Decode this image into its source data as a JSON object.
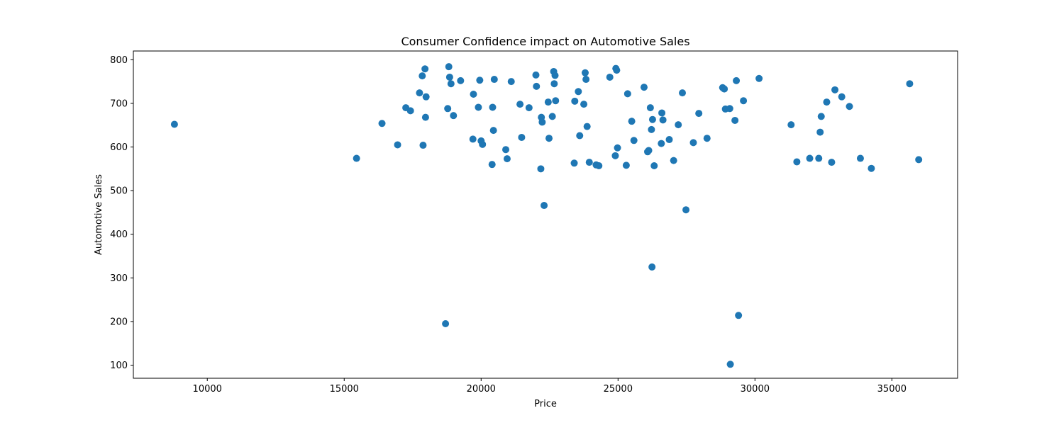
{
  "chart_data": {
    "type": "scatter",
    "title": "Consumer Confidence impact on Automotive Sales",
    "xlabel": "Price",
    "ylabel": "Automotive Sales",
    "xlim": [
      7300,
      37400
    ],
    "ylim": [
      70,
      820
    ],
    "x_ticks": [
      10000,
      15000,
      20000,
      25000,
      30000,
      35000
    ],
    "y_ticks": [
      100,
      200,
      300,
      400,
      500,
      600,
      700,
      800
    ],
    "grid": false,
    "legend": "none",
    "color": "#1f77b4",
    "points": [
      [
        8800,
        652
      ],
      [
        15450,
        574
      ],
      [
        16380,
        654
      ],
      [
        16950,
        605
      ],
      [
        17250,
        690
      ],
      [
        17420,
        683
      ],
      [
        17750,
        724
      ],
      [
        17850,
        763
      ],
      [
        17880,
        604
      ],
      [
        17950,
        779
      ],
      [
        17970,
        668
      ],
      [
        17990,
        715
      ],
      [
        18700,
        195
      ],
      [
        18780,
        688
      ],
      [
        18820,
        784
      ],
      [
        18850,
        760
      ],
      [
        18900,
        745
      ],
      [
        18990,
        672
      ],
      [
        19250,
        752
      ],
      [
        19700,
        618
      ],
      [
        19720,
        721
      ],
      [
        19900,
        691
      ],
      [
        19950,
        753
      ],
      [
        20000,
        614
      ],
      [
        20050,
        606
      ],
      [
        20400,
        560
      ],
      [
        20420,
        691
      ],
      [
        20450,
        638
      ],
      [
        20480,
        755
      ],
      [
        20900,
        594
      ],
      [
        20950,
        573
      ],
      [
        21100,
        750
      ],
      [
        21420,
        698
      ],
      [
        21480,
        622
      ],
      [
        21750,
        690
      ],
      [
        22000,
        765
      ],
      [
        22020,
        739
      ],
      [
        22180,
        550
      ],
      [
        22200,
        668
      ],
      [
        22230,
        657
      ],
      [
        22300,
        466
      ],
      [
        22450,
        703
      ],
      [
        22480,
        620
      ],
      [
        22600,
        670
      ],
      [
        22650,
        773
      ],
      [
        22670,
        745
      ],
      [
        22700,
        764
      ],
      [
        22720,
        706
      ],
      [
        23400,
        563
      ],
      [
        23420,
        705
      ],
      [
        23550,
        727
      ],
      [
        23600,
        626
      ],
      [
        23750,
        698
      ],
      [
        23800,
        770
      ],
      [
        23830,
        755
      ],
      [
        23870,
        647
      ],
      [
        23950,
        565
      ],
      [
        24200,
        559
      ],
      [
        24300,
        557
      ],
      [
        24700,
        760
      ],
      [
        24900,
        580
      ],
      [
        24920,
        780
      ],
      [
        24950,
        776
      ],
      [
        24980,
        598
      ],
      [
        25300,
        558
      ],
      [
        25350,
        722
      ],
      [
        25500,
        659
      ],
      [
        25580,
        615
      ],
      [
        25950,
        737
      ],
      [
        26080,
        589
      ],
      [
        26120,
        592
      ],
      [
        26180,
        690
      ],
      [
        26220,
        640
      ],
      [
        26240,
        325
      ],
      [
        26260,
        663
      ],
      [
        26320,
        557
      ],
      [
        26580,
        608
      ],
      [
        26600,
        678
      ],
      [
        26640,
        662
      ],
      [
        26870,
        617
      ],
      [
        27030,
        569
      ],
      [
        27200,
        651
      ],
      [
        27350,
        724
      ],
      [
        27480,
        456
      ],
      [
        27750,
        610
      ],
      [
        27950,
        677
      ],
      [
        28250,
        620
      ],
      [
        28820,
        736
      ],
      [
        28880,
        733
      ],
      [
        28920,
        687
      ],
      [
        29080,
        688
      ],
      [
        29100,
        102
      ],
      [
        29270,
        661
      ],
      [
        29320,
        752
      ],
      [
        29400,
        214
      ],
      [
        29580,
        706
      ],
      [
        30150,
        757
      ],
      [
        31320,
        651
      ],
      [
        31530,
        566
      ],
      [
        32000,
        574
      ],
      [
        32330,
        574
      ],
      [
        32380,
        634
      ],
      [
        32420,
        670
      ],
      [
        32620,
        703
      ],
      [
        32800,
        565
      ],
      [
        32920,
        731
      ],
      [
        33170,
        715
      ],
      [
        33450,
        693
      ],
      [
        33850,
        574
      ],
      [
        34250,
        551
      ],
      [
        35650,
        745
      ],
      [
        35980,
        571
      ]
    ]
  }
}
